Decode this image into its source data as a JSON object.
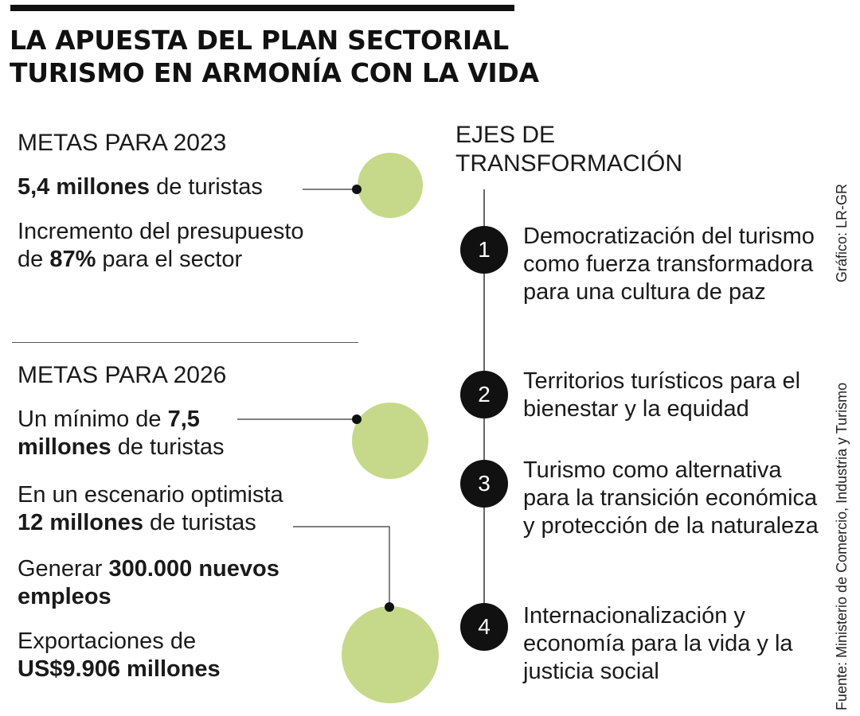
{
  "title": {
    "line1": "LA APUESTA DEL PLAN SECTORIAL",
    "line2": "TURISMO EN ARMONÍA CON LA VIDA"
  },
  "goals_2023": {
    "heading": "METAS PARA 2023",
    "g1_bold": "5,4 millones",
    "g1_rest": " de turistas",
    "g2_pre": "Incremento del presupuesto de ",
    "g2_bold": "87%",
    "g2_post": " para el sector"
  },
  "goals_2026": {
    "heading": "METAS PARA 2026",
    "g1_pre": "Un mínimo de ",
    "g1_bold": "7,5 millones",
    "g1_post": " de turistas",
    "g2_pre": "En un escenario optimista",
    "g2_bold": "12 millones",
    "g2_post": " de turistas",
    "g3_pre": "Generar ",
    "g3_bold": "300.000 nuevos empleos",
    "g4_pre": "Exportaciones de",
    "g4_bold": "US$9.906 millones"
  },
  "axes": {
    "heading_line1": "EJES DE",
    "heading_line2": "TRANSFORMACIÓN",
    "items": [
      {
        "num": "1",
        "text": "Democratización del turismo como fuerza transformadora para una cultura de paz"
      },
      {
        "num": "2",
        "text": "Territorios turísticos para el bienestar y la equidad"
      },
      {
        "num": "3",
        "text": "Turismo como alternativa para la transición económica y protección de la naturaleza"
      },
      {
        "num": "4",
        "text": "Internacionalización y economía para la vida y la justicia social"
      }
    ]
  },
  "credits": {
    "graphic": "Gráfico: LR-GR",
    "source": "Fuente: Ministerio de Comercio, Industria y Turismo"
  },
  "colors": {
    "circle_fill": "#c6d98a",
    "marker": "#111111"
  }
}
